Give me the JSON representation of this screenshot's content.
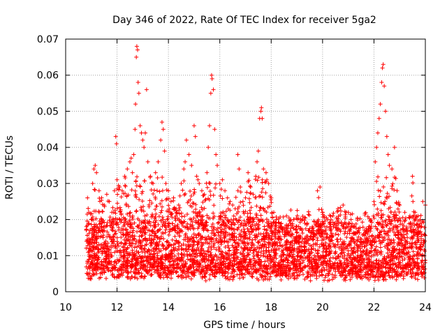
{
  "chart_data": {
    "type": "scatter",
    "title": "Day 346 of 2022, Rate Of TEC Index for receiver 5ga2",
    "xlabel": "GPS time / hours",
    "ylabel": "ROTI / TECUs",
    "xlim": [
      10,
      24
    ],
    "ylim": [
      0,
      0.07
    ],
    "xticks": [
      10,
      12,
      14,
      16,
      18,
      20,
      22,
      24
    ],
    "xtick_labels": [
      "10",
      "12",
      "14",
      "16",
      "18",
      "20",
      "22",
      "24"
    ],
    "yticks": [
      0,
      0.01,
      0.02,
      0.03,
      0.04,
      0.05,
      0.06,
      0.07
    ],
    "ytick_labels": [
      "0",
      "0.01",
      "0.02",
      "0.03",
      "0.04",
      "0.05",
      "0.06",
      "0.07"
    ],
    "grid": true,
    "marker": "+",
    "color": "#ff0000",
    "series": [
      {
        "name": "ROTI",
        "x_range": [
          10.8,
          24.0
        ],
        "points": [
          [
            10.85,
            0.026
          ],
          [
            10.9,
            0.022
          ],
          [
            10.95,
            0.017
          ],
          [
            11.0,
            0.02
          ],
          [
            11.05,
            0.03
          ],
          [
            11.1,
            0.034
          ],
          [
            11.15,
            0.035
          ],
          [
            11.2,
            0.033
          ],
          [
            11.3,
            0.028
          ],
          [
            11.4,
            0.026
          ],
          [
            11.5,
            0.024
          ],
          [
            11.6,
            0.027
          ],
          [
            11.7,
            0.025
          ],
          [
            11.8,
            0.022
          ],
          [
            11.9,
            0.028
          ],
          [
            12.0,
            0.031
          ],
          [
            11.95,
            0.043
          ],
          [
            11.98,
            0.041
          ],
          [
            12.1,
            0.029
          ],
          [
            12.2,
            0.028
          ],
          [
            12.3,
            0.032
          ],
          [
            12.4,
            0.034
          ],
          [
            12.5,
            0.036
          ],
          [
            12.55,
            0.037
          ],
          [
            12.6,
            0.033
          ],
          [
            12.65,
            0.038
          ],
          [
            12.7,
            0.045
          ],
          [
            12.72,
            0.052
          ],
          [
            12.75,
            0.065
          ],
          [
            12.77,
            0.068
          ],
          [
            12.8,
            0.067
          ],
          [
            12.82,
            0.058
          ],
          [
            12.85,
            0.055
          ],
          [
            12.9,
            0.046
          ],
          [
            12.95,
            0.044
          ],
          [
            13.0,
            0.042
          ],
          [
            13.05,
            0.04
          ],
          [
            13.1,
            0.044
          ],
          [
            13.15,
            0.056
          ],
          [
            13.2,
            0.036
          ],
          [
            13.3,
            0.032
          ],
          [
            13.4,
            0.03
          ],
          [
            13.5,
            0.033
          ],
          [
            13.6,
            0.036
          ],
          [
            13.7,
            0.042
          ],
          [
            13.75,
            0.047
          ],
          [
            13.8,
            0.045
          ],
          [
            13.85,
            0.039
          ],
          [
            13.9,
            0.03
          ],
          [
            14.0,
            0.028
          ],
          [
            14.1,
            0.025
          ],
          [
            14.2,
            0.026
          ],
          [
            14.3,
            0.023
          ],
          [
            14.4,
            0.024
          ],
          [
            14.5,
            0.03
          ],
          [
            14.6,
            0.034
          ],
          [
            14.65,
            0.036
          ],
          [
            14.7,
            0.042
          ],
          [
            14.8,
            0.038
          ],
          [
            14.9,
            0.035
          ],
          [
            15.0,
            0.046
          ],
          [
            15.05,
            0.043
          ],
          [
            15.1,
            0.032
          ],
          [
            15.2,
            0.03
          ],
          [
            15.3,
            0.028
          ],
          [
            15.4,
            0.027
          ],
          [
            15.5,
            0.033
          ],
          [
            15.55,
            0.04
          ],
          [
            15.6,
            0.046
          ],
          [
            15.65,
            0.055
          ],
          [
            15.68,
            0.06
          ],
          [
            15.7,
            0.059
          ],
          [
            15.75,
            0.056
          ],
          [
            15.8,
            0.045
          ],
          [
            15.85,
            0.038
          ],
          [
            15.9,
            0.035
          ],
          [
            16.0,
            0.03
          ],
          [
            16.1,
            0.031
          ],
          [
            16.2,
            0.028
          ],
          [
            16.3,
            0.026
          ],
          [
            16.4,
            0.025
          ],
          [
            16.5,
            0.024
          ],
          [
            16.6,
            0.023
          ],
          [
            16.7,
            0.038
          ],
          [
            16.75,
            0.034
          ],
          [
            16.8,
            0.029
          ],
          [
            16.9,
            0.025
          ],
          [
            17.0,
            0.026
          ],
          [
            17.1,
            0.033
          ],
          [
            17.2,
            0.029
          ],
          [
            17.3,
            0.027
          ],
          [
            17.4,
            0.032
          ],
          [
            17.45,
            0.036
          ],
          [
            17.5,
            0.039
          ],
          [
            17.55,
            0.048
          ],
          [
            17.6,
            0.05
          ],
          [
            17.62,
            0.051
          ],
          [
            17.65,
            0.048
          ],
          [
            17.7,
            0.034
          ],
          [
            17.8,
            0.033
          ],
          [
            17.9,
            0.03
          ],
          [
            18.0,
            0.026
          ],
          [
            18.1,
            0.022
          ],
          [
            18.2,
            0.02
          ],
          [
            18.4,
            0.018
          ],
          [
            18.6,
            0.017
          ],
          [
            18.8,
            0.016
          ],
          [
            19.0,
            0.018
          ],
          [
            19.2,
            0.017
          ],
          [
            19.4,
            0.019
          ],
          [
            19.6,
            0.018
          ],
          [
            19.8,
            0.028
          ],
          [
            19.9,
            0.029
          ],
          [
            20.0,
            0.022
          ],
          [
            20.2,
            0.02
          ],
          [
            20.4,
            0.021
          ],
          [
            20.6,
            0.023
          ],
          [
            20.8,
            0.024
          ],
          [
            21.0,
            0.022
          ],
          [
            21.2,
            0.018
          ],
          [
            21.4,
            0.017
          ],
          [
            21.6,
            0.016
          ],
          [
            21.8,
            0.018
          ],
          [
            22.0,
            0.025
          ],
          [
            22.05,
            0.036
          ],
          [
            22.1,
            0.04
          ],
          [
            22.15,
            0.044
          ],
          [
            22.2,
            0.048
          ],
          [
            22.25,
            0.052
          ],
          [
            22.3,
            0.058
          ],
          [
            22.33,
            0.062
          ],
          [
            22.36,
            0.063
          ],
          [
            22.4,
            0.057
          ],
          [
            22.45,
            0.05
          ],
          [
            22.5,
            0.043
          ],
          [
            22.55,
            0.038
          ],
          [
            22.6,
            0.035
          ],
          [
            22.7,
            0.034
          ],
          [
            22.8,
            0.04
          ],
          [
            22.9,
            0.028
          ],
          [
            23.0,
            0.024
          ],
          [
            23.2,
            0.022
          ],
          [
            23.4,
            0.021
          ],
          [
            23.5,
            0.032
          ],
          [
            23.6,
            0.022
          ],
          [
            23.8,
            0.02
          ],
          [
            23.9,
            0.025
          ],
          [
            24.0,
            0.024
          ]
        ]
      }
    ]
  }
}
